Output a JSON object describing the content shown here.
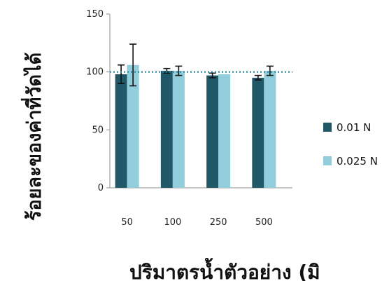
{
  "chart_data": {
    "type": "bar",
    "categories": [
      "50",
      "100",
      "250",
      "500"
    ],
    "series": [
      {
        "name": "0.01 N",
        "color": "#215868",
        "values": [
          98,
          101,
          97,
          95
        ],
        "error": [
          8,
          2,
          2,
          2
        ]
      },
      {
        "name": "0.025 N",
        "color": "#92CDDC",
        "values": [
          106,
          101,
          98,
          101
        ],
        "error": [
          18,
          4,
          0,
          4
        ]
      }
    ],
    "ylim": [
      0,
      150
    ],
    "y_ticks": [
      "0",
      "50",
      "100",
      "150"
    ],
    "reference_line": 100,
    "reference_line_color": "#31859C",
    "ylabel": "ร้อยละของค่าที่วัดได้",
    "xlabel": "ปริมาตรน้ำตัวอย่าง (มิ",
    "legend_position": "right",
    "grid": false
  }
}
